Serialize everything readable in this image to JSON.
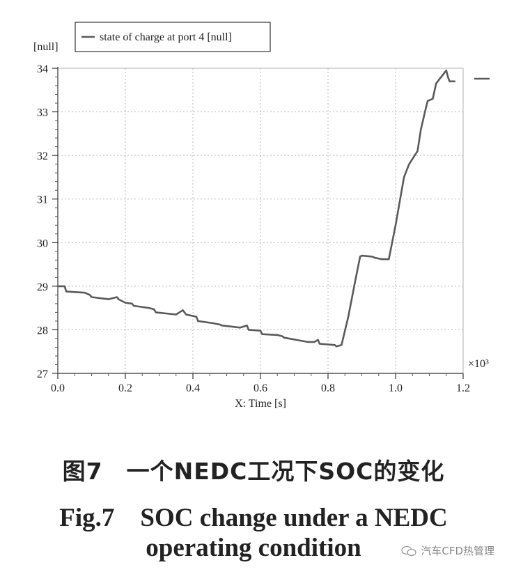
{
  "chart_data": {
    "type": "line",
    "ylabel": "[null]",
    "xlabel": "X: Time [s]",
    "x_multiplier": "×10³",
    "legend": {
      "label": "state of charge at port 4 [null]",
      "placement": "top-left"
    },
    "xlim": [
      0,
      1.2
    ],
    "ylim": [
      27,
      34
    ],
    "x_ticks": [
      "0.0",
      "0.2",
      "0.4",
      "0.6",
      "0.8",
      "1.0",
      "1.2"
    ],
    "y_ticks": [
      "27",
      "28",
      "29",
      "30",
      "31",
      "32",
      "33",
      "34"
    ],
    "grid": true,
    "line_color": "#5a5a5a",
    "series": [
      {
        "name": "state of charge at port 4 [null]",
        "x": [
          0.0,
          0.02,
          0.025,
          0.08,
          0.095,
          0.1,
          0.15,
          0.175,
          0.18,
          0.2,
          0.22,
          0.225,
          0.27,
          0.285,
          0.29,
          0.35,
          0.37,
          0.38,
          0.41,
          0.415,
          0.46,
          0.48,
          0.485,
          0.54,
          0.56,
          0.565,
          0.6,
          0.605,
          0.65,
          0.665,
          0.67,
          0.72,
          0.74,
          0.76,
          0.77,
          0.775,
          0.82,
          0.825,
          0.84,
          0.86,
          0.88,
          0.895,
          0.9,
          0.93,
          0.94,
          0.96,
          0.98,
          1.0,
          1.025,
          1.04,
          1.065,
          1.075,
          1.09,
          1.095,
          1.11,
          1.12,
          1.13,
          1.14,
          1.15,
          1.155,
          1.16,
          1.175
        ],
        "y": [
          29.0,
          29.0,
          28.88,
          28.85,
          28.8,
          28.75,
          28.7,
          28.75,
          28.7,
          28.62,
          28.6,
          28.55,
          28.5,
          28.47,
          28.4,
          28.35,
          28.45,
          28.35,
          28.3,
          28.2,
          28.15,
          28.12,
          28.1,
          28.05,
          28.1,
          28.0,
          27.98,
          27.9,
          27.88,
          27.85,
          27.82,
          27.75,
          27.72,
          27.72,
          27.77,
          27.68,
          27.65,
          27.62,
          27.65,
          28.3,
          29.1,
          29.68,
          29.7,
          29.68,
          29.65,
          29.62,
          29.62,
          30.4,
          31.5,
          31.8,
          32.1,
          32.6,
          33.1,
          33.25,
          33.3,
          33.65,
          33.75,
          33.85,
          33.95,
          33.8,
          33.7,
          33.7
        ]
      }
    ]
  },
  "caption": {
    "cn": "图7　一个NEDC工况下SOC的变化",
    "en_line1": "Fig.7　SOC change under a NEDC",
    "en_line2": "operating condition"
  },
  "watermark": {
    "text": "汽车CFD热管理",
    "icon": "wechat-icon"
  }
}
